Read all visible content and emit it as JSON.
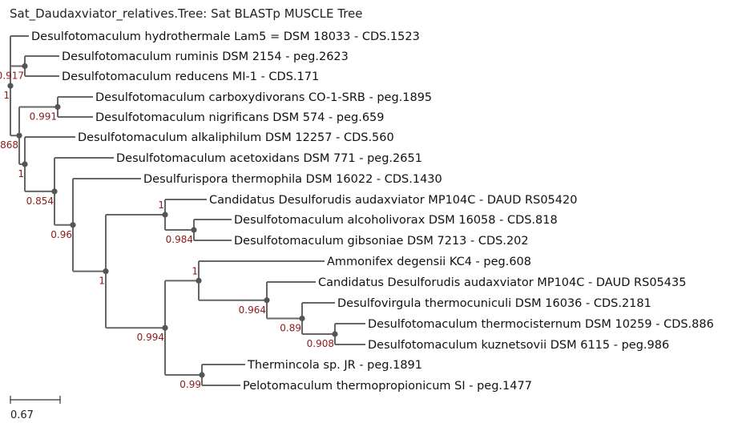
{
  "title": "Sat_Daudaxviator_relatives.Tree: Sat BLASTp MUSCLE Tree",
  "scale_bar_label": "0.67",
  "colors": {
    "branch": "#666666",
    "leaf_text": "#111111",
    "support_text": "#8b1a1a",
    "node": "#555555"
  },
  "leaves": {
    "L1": "Desulfotomaculum hydrothermale Lam5 = DSM 18033 - CDS.1523",
    "L2": "Desulfotomaculum ruminis DSM 2154 - peg.2623",
    "L3": "Desulfotomaculum reducens MI-1 - CDS.171",
    "L4": "Desulfotomaculum carboxydivorans CO-1-SRB - peg.1895",
    "L5": "Desulfotomaculum nigrificans DSM 574 - peg.659",
    "L6": "Desulfotomaculum alkaliphilum DSM 12257 - CDS.560",
    "L7": "Desulfotomaculum acetoxidans DSM 771 - peg.2651",
    "L8": "Desulfurispora thermophila DSM 16022 - CDS.1430",
    "L9": "Candidatus Desulforudis audaxviator MP104C - DAUD RS05420",
    "L10": "Desulfotomaculum alcoholivorax DSM 16058 - CDS.818",
    "L11": "Desulfotomaculum gibsoniae DSM 7213 - CDS.202",
    "L12": "Ammonifex degensii KC4 - peg.608",
    "L13": "Candidatus Desulforudis audaxviator MP104C - DAUD RS05435",
    "L14": "Desulfovirgula thermocuniculi DSM 16036 - CDS.2181",
    "L15": "Desulfotomaculum thermocisternum DSM 10259 - CDS.886",
    "L16": "Desulfotomaculum kuznetsovii DSM 6115 - peg.986",
    "L17": "Thermincola sp. JR - peg.1891",
    "L18": "Pelotomaculum thermopropionicum SI - peg.1477"
  },
  "supports": {
    "N_root": "1",
    "N_a": "0.917",
    "N_b": "0.868",
    "N_c": "0.991",
    "N_d": "1",
    "N_e": "0.854",
    "N_f": "0.96",
    "N_g": "1",
    "N_h": "1",
    "N_i": "0.984",
    "N_j": "0.994",
    "N_k": "1",
    "N_l": "0.964",
    "N_m": "0.89",
    "N_n": "0.908",
    "N_o": "0.99"
  }
}
